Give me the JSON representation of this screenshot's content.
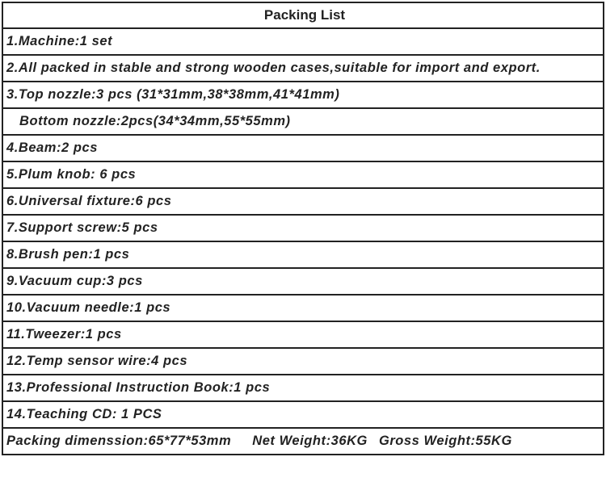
{
  "title": "Packing List",
  "items": [
    "1.Machine:1 set",
    "2.All packed in stable and strong wooden cases,suitable for import and export.",
    "3.Top nozzle:3 pcs (31*31mm,38*38mm,41*41mm)",
    "Bottom nozzle:2pcs(34*34mm,55*55mm)",
    "4.Beam:2 pcs",
    "5.Plum knob: 6 pcs",
    "6.Universal fixture:6 pcs",
    "7.Support screw:5 pcs",
    "8.Brush pen:1 pcs",
    "9.Vacuum cup:3 pcs",
    "10.Vacuum needle:1 pcs",
    "11.Tweezer:1 pcs",
    "12.Temp sensor wire:4 pcs",
    "13.Professional Instruction Book:1 pcs",
    "14.Teaching CD: 1 PCS"
  ],
  "footer": {
    "dimension": "Packing dimenssion:65*77*53mm",
    "net_weight": "Net Weight:36KG",
    "gross_weight": "Gross Weight:55KG"
  }
}
